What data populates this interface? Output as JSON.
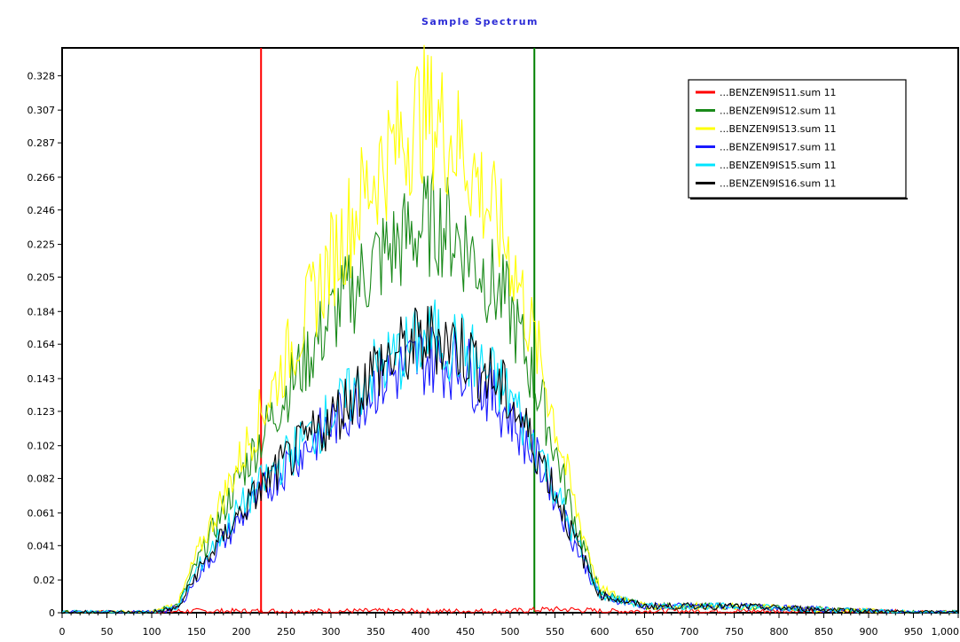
{
  "chart_data": {
    "type": "line",
    "title": "Sample Spectrum",
    "xlabel": "",
    "ylabel": "",
    "xlim": [
      0,
      1000
    ],
    "ylim": [
      0,
      0.345
    ],
    "x_ticks": [
      0,
      50,
      100,
      150,
      200,
      250,
      300,
      350,
      400,
      450,
      500,
      550,
      600,
      650,
      700,
      750,
      800,
      850,
      900,
      950,
      1000
    ],
    "x_tick_labels": [
      "0",
      "50",
      "100",
      "150",
      "200",
      "250",
      "300",
      "350",
      "400",
      "450",
      "500",
      "550",
      "600",
      "650",
      "700",
      "750",
      "800",
      "850",
      "900",
      "950",
      "1,000"
    ],
    "y_ticks": [
      0,
      0.02,
      0.041,
      0.061,
      0.082,
      0.102,
      0.123,
      0.143,
      0.164,
      0.184,
      0.205,
      0.225,
      0.246,
      0.266,
      0.287,
      0.307,
      0.328
    ],
    "y_tick_labels": [
      "0",
      "0.02",
      "0.041",
      "0.061",
      "0.082",
      "0.102",
      "0.123",
      "0.143",
      "0.164",
      "0.184",
      "0.205",
      "0.225",
      "0.246",
      "0.266",
      "0.287",
      "0.307",
      "0.328"
    ],
    "grid": false,
    "legend_position": "top-right",
    "vertical_markers": [
      {
        "x": 222,
        "color": "#ff0000"
      },
      {
        "x": 527,
        "color": "#008000"
      }
    ],
    "x": [
      0,
      100,
      130,
      150,
      200,
      250,
      300,
      350,
      400,
      420,
      450,
      500,
      540,
      570,
      600,
      650,
      700,
      750,
      800,
      850,
      900,
      950,
      1000
    ],
    "series": [
      {
        "name": "...BENZEN9IS11.sum 11",
        "color": "#ff0000",
        "values": [
          0,
          0,
          0.001,
          0.001,
          0.001,
          0.001,
          0.001,
          0.001,
          0.001,
          0.001,
          0.001,
          0.001,
          0.002,
          0.002,
          0.001,
          0.001,
          0.001,
          0.001,
          0.001,
          0.001,
          0.001,
          0,
          0
        ]
      },
      {
        "name": "...BENZEN9IS12.sum 11",
        "color": "#1a8a1a",
        "values": [
          0,
          0,
          0.005,
          0.03,
          0.085,
          0.135,
          0.18,
          0.215,
          0.235,
          0.24,
          0.225,
          0.185,
          0.12,
          0.06,
          0.012,
          0.004,
          0.004,
          0.004,
          0.003,
          0.002,
          0.001,
          0,
          0
        ]
      },
      {
        "name": "...BENZEN9IS13.sum 11",
        "color": "#ffff00",
        "values": [
          0,
          0,
          0.006,
          0.035,
          0.095,
          0.155,
          0.215,
          0.27,
          0.305,
          0.3,
          0.28,
          0.22,
          0.14,
          0.07,
          0.014,
          0.004,
          0.004,
          0.004,
          0.003,
          0.002,
          0.001,
          0,
          0
        ]
      },
      {
        "name": "...BENZEN9IS17.sum 11",
        "color": "#1a1aff",
        "values": [
          0,
          0,
          0.003,
          0.022,
          0.058,
          0.09,
          0.115,
          0.14,
          0.155,
          0.155,
          0.15,
          0.12,
          0.085,
          0.045,
          0.01,
          0.004,
          0.004,
          0.004,
          0.003,
          0.002,
          0.001,
          0,
          0
        ]
      },
      {
        "name": "...BENZEN9IS15.sum 11",
        "color": "#00e5ff",
        "values": [
          0,
          0,
          0.004,
          0.026,
          0.065,
          0.095,
          0.12,
          0.148,
          0.165,
          0.168,
          0.16,
          0.132,
          0.09,
          0.048,
          0.011,
          0.004,
          0.004,
          0.004,
          0.003,
          0.002,
          0.001,
          0,
          0
        ]
      },
      {
        "name": "...BENZEN9IS16.sum 11",
        "color": "#000000",
        "values": [
          0,
          0,
          0.003,
          0.024,
          0.062,
          0.093,
          0.118,
          0.15,
          0.165,
          0.17,
          0.16,
          0.13,
          0.088,
          0.047,
          0.011,
          0.004,
          0.004,
          0.004,
          0.003,
          0.002,
          0.001,
          0,
          0
        ]
      }
    ]
  }
}
